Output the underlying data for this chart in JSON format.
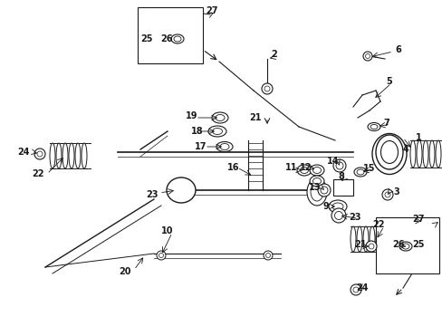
{
  "bg_color": "#ffffff",
  "fig_width": 4.89,
  "fig_height": 3.6,
  "dpi": 100,
  "lc": "#1a1a1a",
  "lw_main": 1.0,
  "lw_thin": 0.6,
  "fs": 7.0
}
